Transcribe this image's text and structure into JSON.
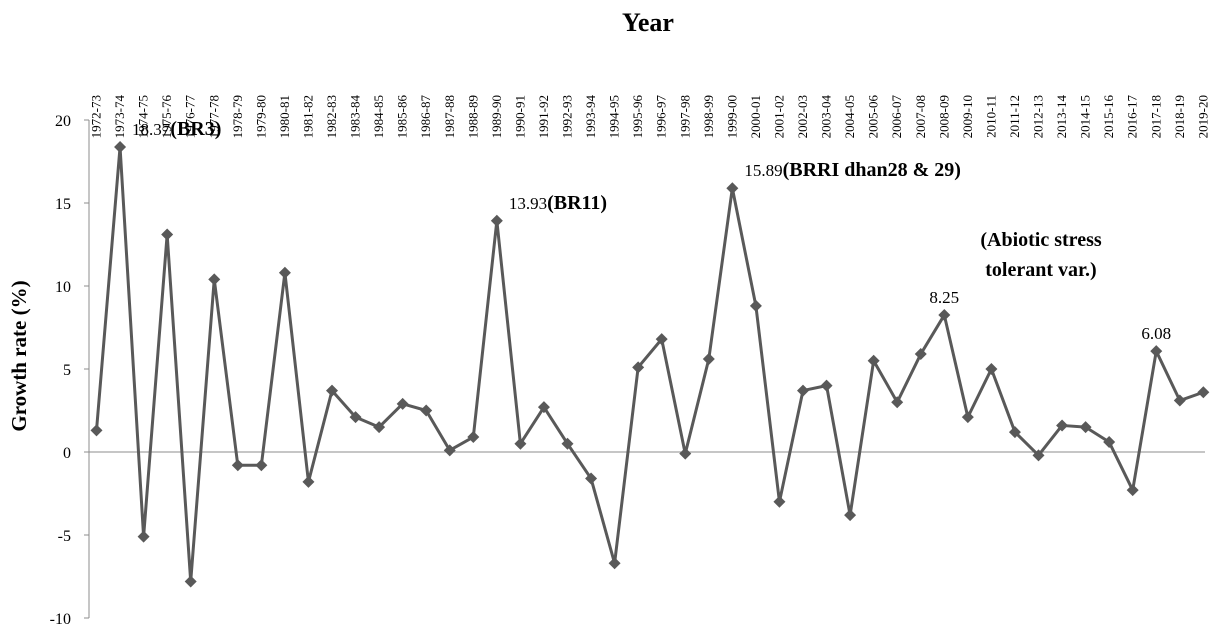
{
  "chart_data": {
    "type": "line",
    "xlabel": "Year",
    "ylabel": "Growth rate (%)",
    "ylim": [
      -10,
      20
    ],
    "yticks": [
      -10,
      -5,
      0,
      5,
      10,
      15,
      20
    ],
    "grid": false,
    "line_color": "#595959",
    "x": [
      "1972-73",
      "1973-74",
      "1974-75",
      "1975-76",
      "1976-77",
      "1977-78",
      "1978-79",
      "1979-80",
      "1980-81",
      "1981-82",
      "1982-83",
      "1983-84",
      "1984-85",
      "1985-86",
      "1986-87",
      "1987-88",
      "1988-89",
      "1989-90",
      "1990-91",
      "1991-92",
      "1992-93",
      "1993-94",
      "1994-95",
      "1995-96",
      "1996-97",
      "1997-98",
      "1998-99",
      "1999-00",
      "2000-01",
      "2001-02",
      "2002-03",
      "2003-04",
      "2004-05",
      "2005-06",
      "2006-07",
      "2007-08",
      "2008-09",
      "2009-10",
      "2010-11",
      "2011-12",
      "2012-13",
      "2013-14",
      "2014-15",
      "2015-16",
      "2016-17",
      "2017-18",
      "2018-19",
      "2019-20"
    ],
    "series": [
      {
        "values": [
          1.3,
          18.37,
          -5.1,
          13.1,
          -7.8,
          10.4,
          -0.8,
          -0.8,
          10.8,
          -1.8,
          3.7,
          2.1,
          1.5,
          2.9,
          2.5,
          0.1,
          0.9,
          13.93,
          0.5,
          2.7,
          0.5,
          -1.6,
          -6.7,
          5.1,
          6.8,
          -0.1,
          5.6,
          15.89,
          8.8,
          -3.0,
          3.7,
          4.0,
          -3.8,
          5.5,
          3.0,
          5.9,
          8.25,
          2.1,
          5.0,
          1.2,
          -0.2,
          1.6,
          1.5,
          0.6,
          -2.3,
          6.08,
          3.1,
          3.6
        ]
      }
    ],
    "annotations": [
      {
        "x": "1973-74",
        "value": "18.37",
        "label": "(BR3)"
      },
      {
        "x": "1989-90",
        "value": "13.93",
        "label": "(BR11)"
      },
      {
        "x": "1999-00",
        "value": "15.89",
        "label": "(BRRI dhan28 & 29)"
      },
      {
        "x": "2008-09",
        "value": "8.25",
        "label": ""
      },
      {
        "x": "2017-18",
        "value": "6.08",
        "label": ""
      }
    ],
    "note_lines": [
      "(Abiotic stress",
      "tolerant var.)"
    ]
  }
}
